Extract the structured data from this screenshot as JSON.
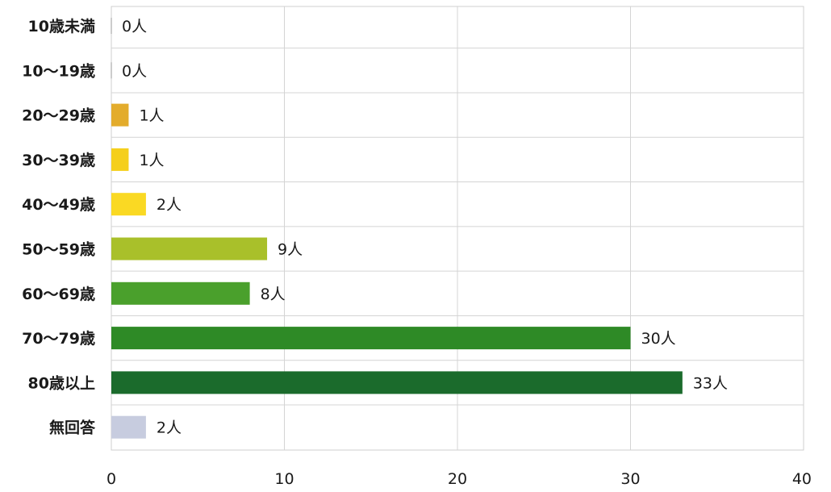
{
  "chart_data": {
    "type": "bar",
    "orientation": "horizontal",
    "categories": [
      "10歳未満",
      "10～19歳",
      "20～29歳",
      "30～39歳",
      "40～49歳",
      "50～59歳",
      "60～69歳",
      "70～79歳",
      "80歳以上",
      "無回答"
    ],
    "values": [
      0,
      0,
      1,
      1,
      2,
      9,
      8,
      30,
      33,
      2
    ],
    "value_labels": [
      "0人",
      "0人",
      "1人",
      "1人",
      "2人",
      "9人",
      "8人",
      "30人",
      "33人",
      "2人"
    ],
    "colors": [
      "#e0a020",
      "#e0a020",
      "#e3ac2c",
      "#f5cf1c",
      "#fad923",
      "#a9c02a",
      "#4aa02c",
      "#2e8a26",
      "#1b6b2c",
      "#c7ccdf"
    ],
    "x_ticks": [
      0,
      10,
      20,
      30,
      40
    ],
    "xlim": [
      0,
      40
    ],
    "grid": true,
    "title": "",
    "xlabel": "",
    "ylabel": ""
  }
}
